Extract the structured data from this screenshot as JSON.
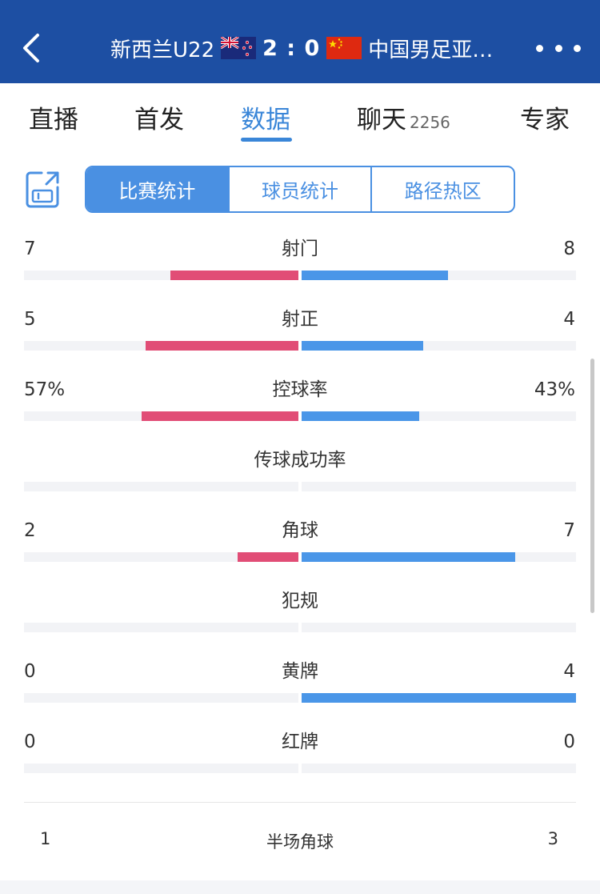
{
  "header": {
    "home_team": "新西兰U22",
    "score": "2 : 0",
    "away_team": "中国男足亚…"
  },
  "tabs": [
    {
      "label": "直播"
    },
    {
      "label": "首发"
    },
    {
      "label": "数据",
      "active": true
    },
    {
      "label": "聊天",
      "count": "2256"
    },
    {
      "label": "专家"
    }
  ],
  "segments": [
    {
      "label": "比赛统计",
      "active": true
    },
    {
      "label": "球员统计"
    },
    {
      "label": "路径热区"
    }
  ],
  "stats": [
    {
      "label": "射门",
      "left": "7",
      "right": "8",
      "left_fill": 0.466,
      "right_fill": 0.533
    },
    {
      "label": "射正",
      "left": "5",
      "right": "4",
      "left_fill": 0.556,
      "right_fill": 0.444
    },
    {
      "label": "控球率",
      "left": "57%",
      "right": "43%",
      "left_fill": 0.57,
      "right_fill": 0.43
    },
    {
      "label": "传球成功率",
      "left": "",
      "right": "",
      "left_fill": 0,
      "right_fill": 0
    },
    {
      "label": "角球",
      "left": "2",
      "right": "7",
      "left_fill": 0.222,
      "right_fill": 0.778
    },
    {
      "label": "犯规",
      "left": "",
      "right": "",
      "left_fill": 0,
      "right_fill": 0
    },
    {
      "label": "黄牌",
      "left": "0",
      "right": "4",
      "left_fill": 0,
      "right_fill": 1.0
    },
    {
      "label": "红牌",
      "left": "0",
      "right": "0",
      "left_fill": 0,
      "right_fill": 0
    }
  ],
  "half_corners": {
    "label": "半场角球",
    "left": "1",
    "right": "3"
  },
  "colors": {
    "header_bg": "#1d4fa3",
    "accent": "#4a90e2",
    "home_bar": "#e14d76",
    "away_bar": "#4a96e8"
  },
  "icons": {
    "back": "chevron-left-icon",
    "more": "more-dots-icon",
    "share": "share-icon",
    "home_flag": "new-zealand-flag-icon",
    "away_flag": "china-flag-icon"
  }
}
